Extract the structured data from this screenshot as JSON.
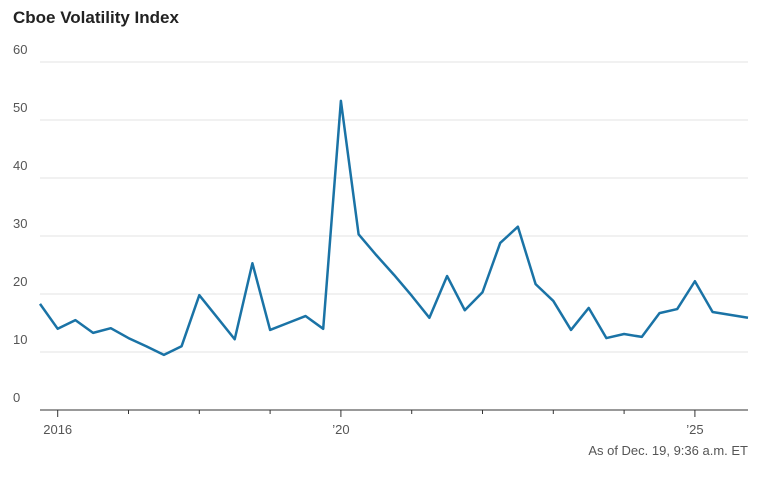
{
  "chart_data": {
    "type": "line",
    "title": "Cboe Volatility Index",
    "footnote": "As of Dec. 19, 9:36 a.m. ET",
    "x": [
      2015.75,
      2016,
      2016.25,
      2016.5,
      2016.75,
      2017,
      2017.25,
      2017.5,
      2017.75,
      2018,
      2018.25,
      2018.5,
      2018.75,
      2019,
      2019.25,
      2019.5,
      2019.75,
      2020,
      2020.25,
      2020.5,
      2020.75,
      2021,
      2021.25,
      2021.5,
      2021.75,
      2022,
      2022.25,
      2022.5,
      2022.75,
      2023,
      2023.25,
      2023.5,
      2023.75,
      2024,
      2024.25,
      2024.5,
      2024.75,
      2025,
      2025.25,
      2025.5,
      2025.75
    ],
    "series": [
      {
        "color": "#1a73a6",
        "values": [
          18.3,
          14.0,
          15.5,
          13.3,
          14.1,
          12.4,
          11.0,
          9.5,
          11.0,
          19.8,
          16.0,
          12.2,
          25.3,
          13.8,
          15.0,
          16.2,
          14.0,
          53.3,
          30.3,
          26.7,
          23.3,
          19.7,
          15.9,
          23.1,
          17.2,
          20.3,
          28.8,
          31.6,
          21.7,
          18.8,
          13.8,
          17.6,
          12.4,
          13.1,
          12.6,
          16.7,
          17.4,
          22.2,
          16.9,
          16.4,
          15.9
        ]
      }
    ],
    "xlim": [
      2015.75,
      2025.75
    ],
    "xticks": [
      {
        "value": 2016,
        "label": "2016"
      },
      {
        "value": 2020,
        "label": "’20"
      },
      {
        "value": 2025,
        "label": "’25"
      }
    ],
    "xminorticks": [
      2017,
      2018,
      2019,
      2021,
      2022,
      2023,
      2024
    ],
    "ylim": [
      0,
      60
    ],
    "yticks": [
      0,
      10,
      20,
      30,
      40,
      50,
      60
    ],
    "grid": true
  }
}
